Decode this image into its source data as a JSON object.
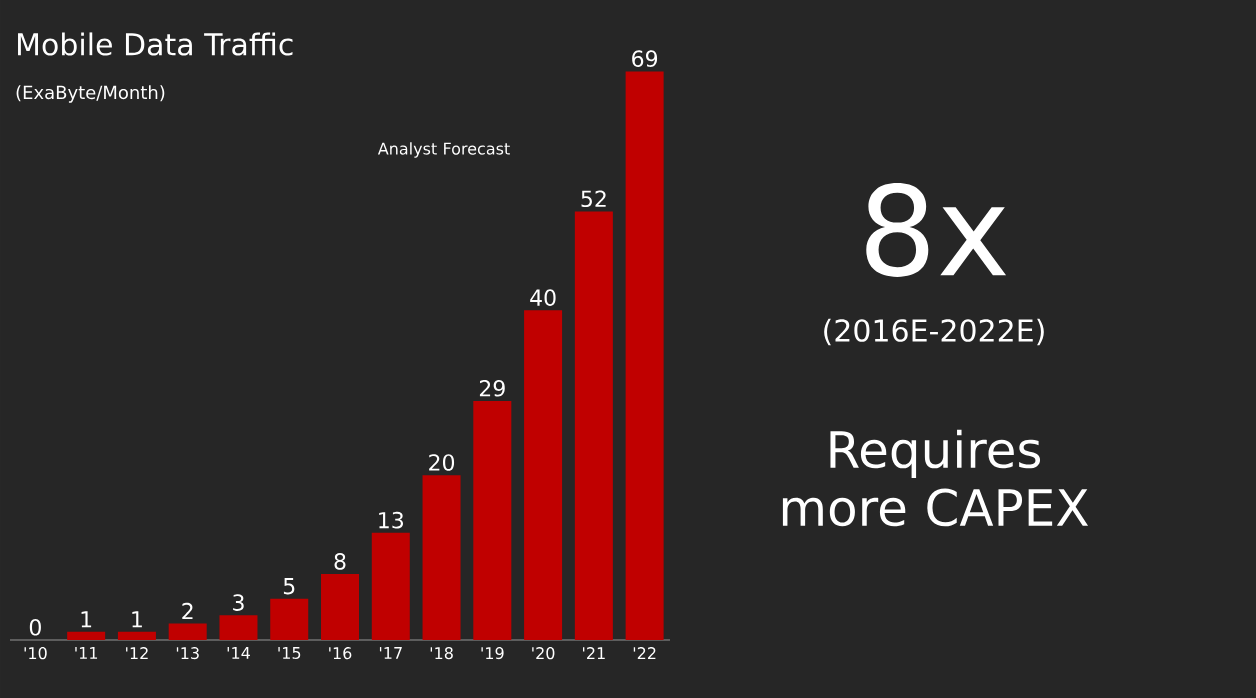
{
  "chart_data": {
    "type": "bar",
    "title": "Mobile Data Traffic",
    "subtitle": "(ExaByte/Month)",
    "categories": [
      "'10",
      "'11",
      "'12",
      "'13",
      "'14",
      "'15",
      "'16",
      "'17",
      "'18",
      "'19",
      "'20",
      "'21",
      "'22"
    ],
    "values": [
      0,
      1,
      1,
      2,
      3,
      5,
      8,
      13,
      20,
      29,
      40,
      52,
      69
    ],
    "color": "#c00000",
    "data_labels": true,
    "annotations": [
      "Analyst Forecast",
      "8x",
      "(2016E-2022E)",
      "Requires more CAPEX"
    ]
  }
}
